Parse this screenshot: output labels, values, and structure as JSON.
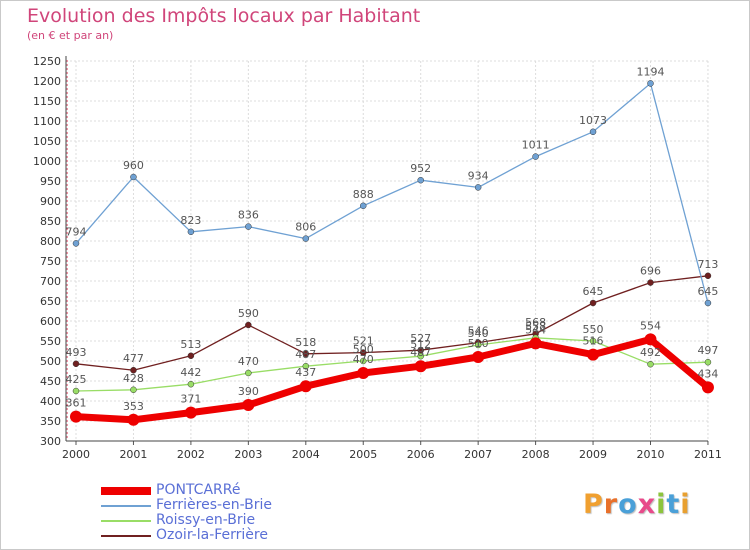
{
  "header": {
    "title": "Evolution des Impôts locaux par Habitant",
    "subtitle": "(en € et par an)"
  },
  "logo": {
    "text": "Proxiti",
    "letters": [
      {
        "ch": "P",
        "color": "#f0a030"
      },
      {
        "ch": "r",
        "color": "#e8702a"
      },
      {
        "ch": "o",
        "color": "#4aa0d8"
      },
      {
        "ch": "x",
        "color": "#e84a8a"
      },
      {
        "ch": "i",
        "color": "#8cc43c"
      },
      {
        "ch": "t",
        "color": "#4aa0d8"
      },
      {
        "ch": "i",
        "color": "#e8a030"
      }
    ]
  },
  "chart_data": {
    "type": "line",
    "title": "Evolution des Impôts locaux par Habitant",
    "subtitle": "(en € et par an)",
    "x": [
      "2000",
      "2001",
      "2002",
      "2003",
      "2004",
      "2005",
      "2006",
      "2007",
      "2008",
      "2009",
      "2010",
      "2011"
    ],
    "ylim": [
      300,
      1250
    ],
    "yticks": [
      300,
      350,
      400,
      450,
      500,
      550,
      600,
      650,
      700,
      750,
      800,
      850,
      900,
      950,
      1000,
      1050,
      1100,
      1150,
      1200,
      1250
    ],
    "grid": true,
    "legend_position": "bottom-left",
    "series": [
      {
        "name": "PONTCARRé",
        "color": "#ee0000",
        "values": [
          361,
          353,
          371,
          390,
          437,
          470,
          487,
          510,
          544,
          516,
          554,
          434
        ],
        "labels": [
          "361",
          "353",
          "371",
          "390",
          "437",
          "470",
          "487",
          "510",
          "544",
          "516",
          "554",
          "434"
        ]
      },
      {
        "name": "Ferrières-en-Brie",
        "color": "#6fa1d3",
        "values": [
          794,
          960,
          823,
          836,
          806,
          888,
          952,
          934,
          1011,
          1073,
          1194,
          645
        ],
        "labels": [
          "794",
          "960",
          "823",
          "836",
          "806",
          "888",
          "952",
          "934",
          "1011",
          "1073",
          "1194",
          "645"
        ]
      },
      {
        "name": "Roissy-en-Brie",
        "color": "#99dd66",
        "values": [
          425,
          428,
          442,
          470,
          487,
          500,
          512,
          540,
          558,
          550,
          492,
          497
        ],
        "labels": [
          "425",
          "428",
          "442",
          "470",
          "487",
          "500",
          "512",
          "540",
          "558",
          "550",
          "492",
          "497"
        ]
      },
      {
        "name": "Ozoir-la-Ferrière",
        "color": "#702020",
        "values": [
          493,
          477,
          513,
          590,
          518,
          521,
          527,
          546,
          568,
          645,
          696,
          713
        ],
        "labels": [
          "493",
          "477",
          "513",
          "590",
          "518",
          "521",
          "527",
          "546",
          "568",
          "645",
          "696",
          "713"
        ]
      }
    ]
  }
}
